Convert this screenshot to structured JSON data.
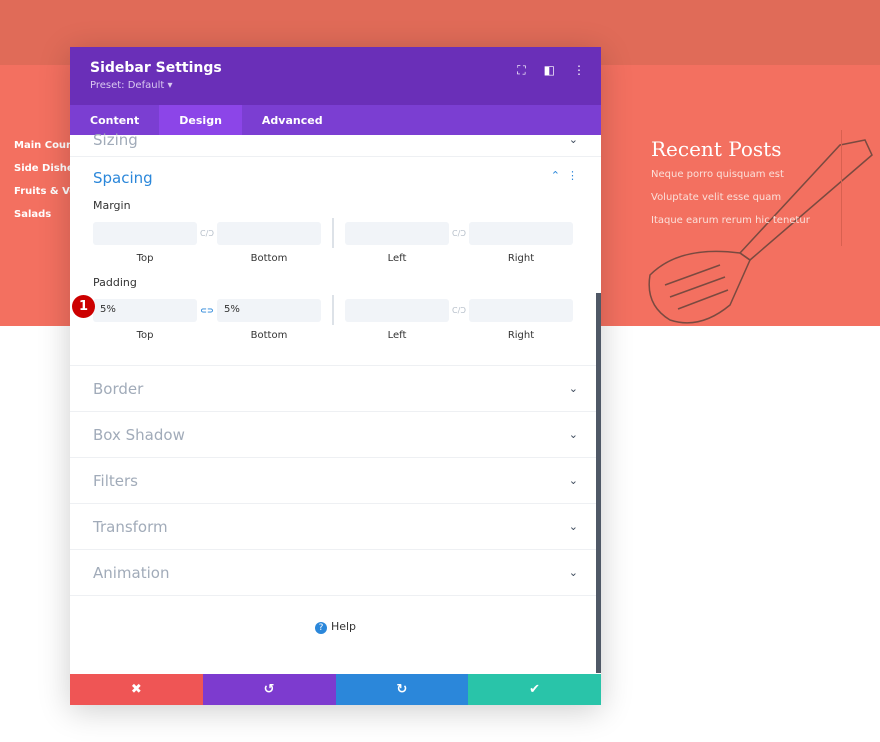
{
  "page": {
    "nav_items": [
      "Main Cours",
      "Side Dishe",
      "Fruits & Veg",
      "Salads"
    ],
    "recent_posts": {
      "title": "Recent Posts",
      "items": [
        "Neque porro quisquam est",
        "Voluptate velit esse quam",
        "Itaque earum rerum hic tenetur"
      ]
    }
  },
  "modal": {
    "title": "Sidebar Settings",
    "preset": "Preset: Default ▾",
    "tabs": [
      "Content",
      "Design",
      "Advanced"
    ],
    "active_tab": "Design",
    "sections_top": [
      "Sizing"
    ],
    "spacing": {
      "title": "Spacing",
      "margin": {
        "label": "Margin",
        "top": "",
        "bottom": "",
        "left": "",
        "right": ""
      },
      "padding": {
        "label": "Padding",
        "top": "5%",
        "bottom": "5%",
        "left": "",
        "right": ""
      },
      "captions": [
        "Top",
        "Bottom",
        "Left",
        "Right"
      ],
      "badge": "1"
    },
    "sections": [
      "Border",
      "Box Shadow",
      "Filters",
      "Transform",
      "Animation"
    ],
    "help": "Help",
    "footer_colors": {
      "cancel": "#ef5555",
      "undo": "#7d3bcf",
      "redo": "#2b87da",
      "save": "#29c4a9"
    }
  }
}
